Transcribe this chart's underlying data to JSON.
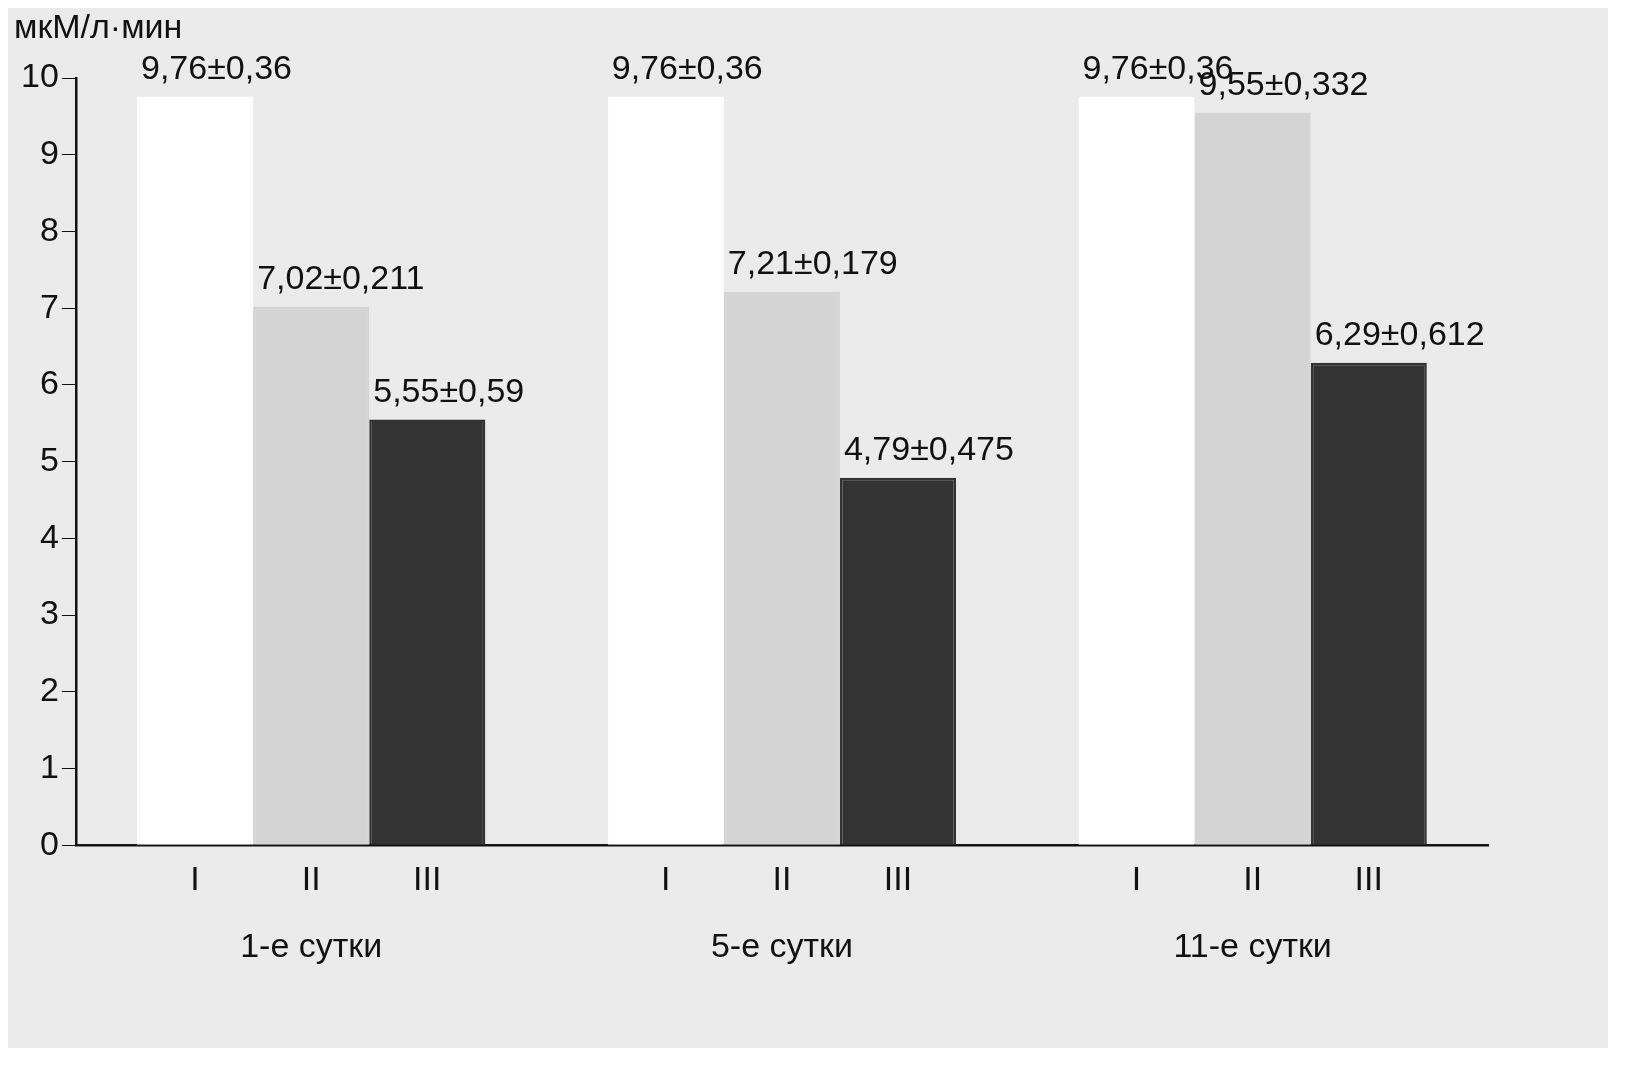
{
  "chart_data": {
    "type": "bar",
    "ylabel": "мкМ/л·мин",
    "categories": [
      "1-е сутки",
      "5-е сутки",
      "11-е сутки"
    ],
    "series": [
      {
        "name": "I",
        "color": "#ffffff",
        "values": [
          9.76,
          9.76,
          9.76
        ],
        "value_labels": [
          "9,76±0,36",
          "9,76±0,36",
          "9,76±0,36"
        ]
      },
      {
        "name": "II",
        "color": "#d4d4d4",
        "values": [
          7.02,
          7.21,
          9.55
        ],
        "value_labels": [
          "7,02±0,211",
          "7,21±0,179",
          "9,55±0,332"
        ]
      },
      {
        "name": "III",
        "color": "#333333",
        "values": [
          5.55,
          4.79,
          6.29
        ],
        "value_labels": [
          "5,55±0,59",
          "4,79±0,475",
          "6,29±0,612"
        ]
      }
    ],
    "ylim": [
      0,
      10
    ],
    "yticks": [
      0,
      1,
      2,
      3,
      4,
      5,
      6,
      7,
      8,
      9,
      10
    ],
    "grid": false,
    "legend": false
  }
}
